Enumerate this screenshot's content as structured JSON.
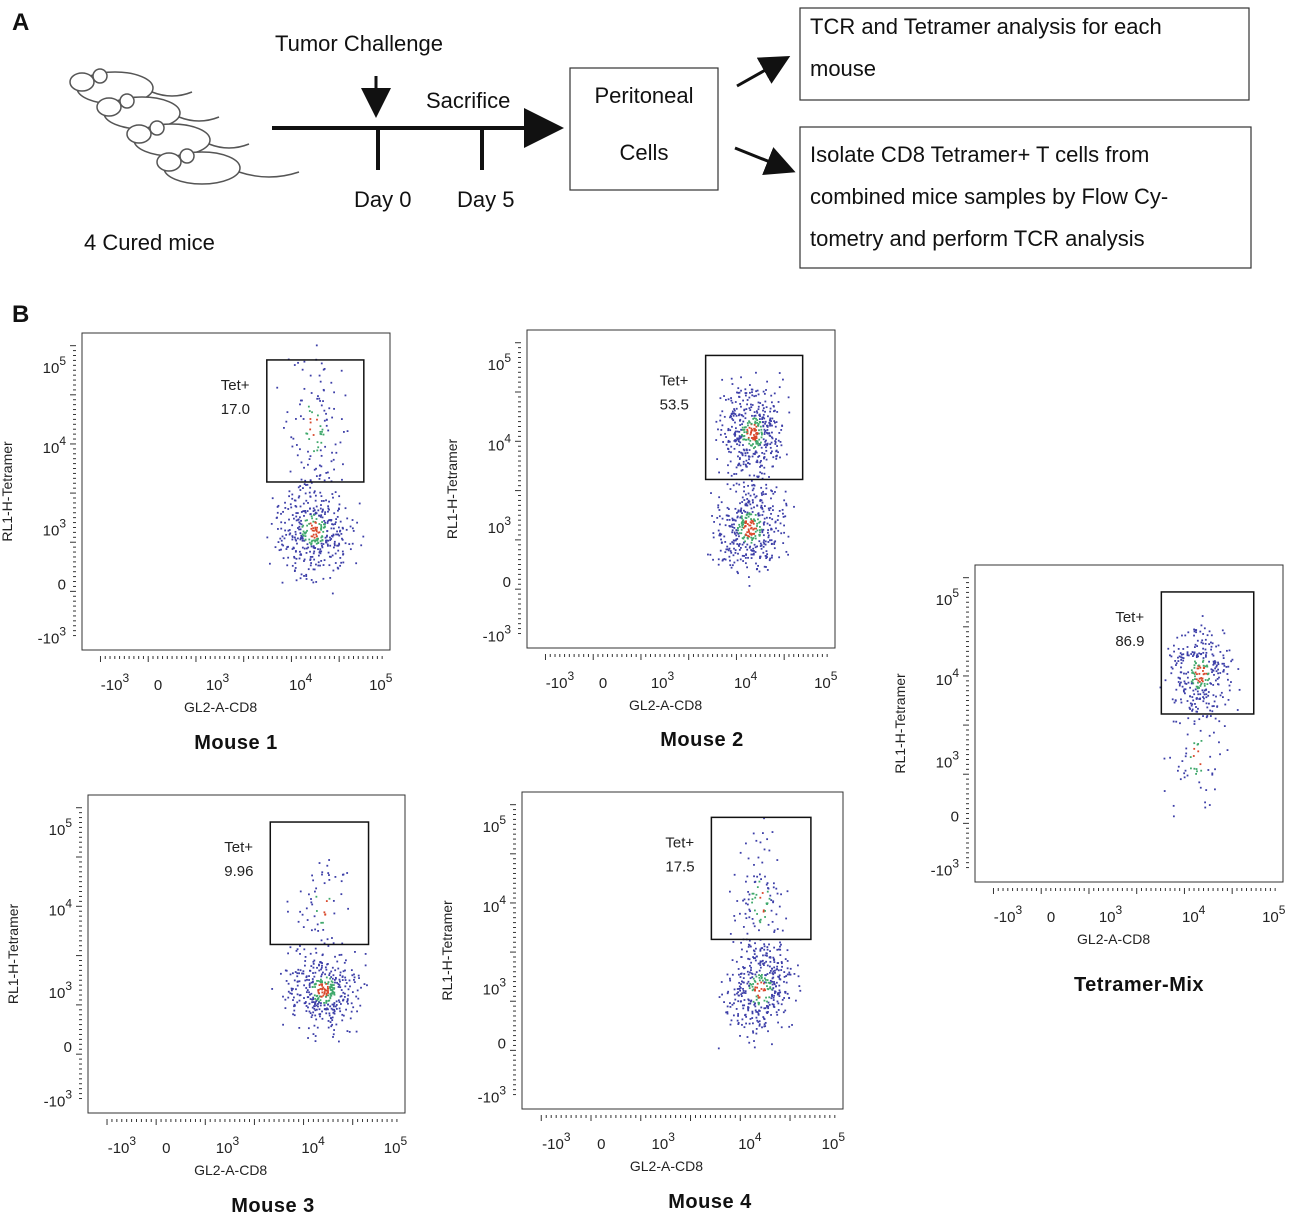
{
  "panel_a": {
    "label": "A",
    "event": "Tumor Challenge",
    "sacrifice": "Sacrifice",
    "days": [
      "Day 0",
      "Day 5"
    ],
    "mice_label": "4 Cured mice",
    "peritoneal": [
      "Peritoneal",
      "Cells"
    ],
    "outcomes": [
      [
        "TCR and Tetramer analysis for each",
        "mouse"
      ],
      [
        "Isolate CD8 Tetramer+ T cells from",
        "combined mice samples by Flow Cy-",
        "tometry and perform TCR analysis"
      ]
    ]
  },
  "panel_b": {
    "label": "B",
    "x_label": "GL2-A-CD8",
    "y_label": "RL1-H-Tetramer",
    "x_ticks": [
      {
        "base": "-10",
        "exp": "3"
      },
      {
        "base": "0"
      },
      {
        "base": "10",
        "exp": "3"
      },
      {
        "base": "10",
        "exp": "4"
      },
      {
        "base": "10",
        "exp": "5"
      }
    ],
    "y_ticks": [
      {
        "base": "10",
        "exp": "5"
      },
      {
        "base": "10",
        "exp": "4"
      },
      {
        "base": "10",
        "exp": "3"
      },
      {
        "base": "0"
      },
      {
        "base": "-10",
        "exp": "3"
      }
    ],
    "gate_name": "Tet+",
    "plots": [
      {
        "title": "Mouse 1",
        "gate_value": "17.0"
      },
      {
        "title": "Mouse 2",
        "gate_value": "53.5"
      },
      {
        "title": "Tetramer-Mix",
        "gate_value": "86.9"
      },
      {
        "title": "Mouse 3",
        "gate_value": "9.96"
      },
      {
        "title": "Mouse 4",
        "gate_value": "17.5"
      }
    ]
  }
}
